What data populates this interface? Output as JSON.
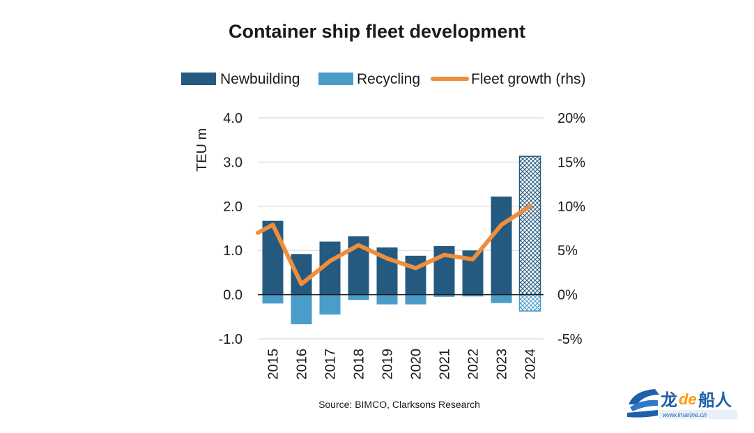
{
  "chart_data": {
    "type": "bar",
    "title": "Container ship fleet development",
    "ylabel": "TEU m",
    "ylim": [
      -1.0,
      4.0
    ],
    "y_ticks": [
      "4.0",
      "3.0",
      "2.0",
      "1.0",
      "0.0",
      "-1.0"
    ],
    "y2lim": [
      -5,
      20
    ],
    "y2_ticks": [
      "20%",
      "15%",
      "10%",
      "5%",
      "0%",
      "-5%"
    ],
    "categories": [
      "2015",
      "2016",
      "2017",
      "2018",
      "2019",
      "2020",
      "2021",
      "2022",
      "2023",
      "2024"
    ],
    "series": [
      {
        "name": "Newbuilding",
        "type": "bar",
        "values": [
          1.67,
          0.92,
          1.2,
          1.32,
          1.07,
          0.88,
          1.1,
          1.0,
          2.22,
          3.13
        ]
      },
      {
        "name": "Recycling",
        "type": "bar",
        "values": [
          -0.2,
          -0.67,
          -0.45,
          -0.12,
          -0.22,
          -0.22,
          -0.05,
          -0.04,
          -0.19,
          -0.37
        ]
      },
      {
        "name": "Fleet growth (rhs)",
        "type": "line",
        "axis": "right",
        "values": [
          7.9,
          1.2,
          3.8,
          5.6,
          4.1,
          3.0,
          4.5,
          4.0,
          7.9,
          10.0
        ]
      }
    ],
    "line_start_value": 7.0,
    "forecast_category": "2024",
    "grid": true,
    "legend_position": "top",
    "source": "Source: BIMCO, Clarksons Research"
  },
  "colors": {
    "newbuilding": "#245a7f",
    "recycling": "#4a9cc9",
    "fleet_growth": "#ef8e3c",
    "grid": "#d9d9d9"
  },
  "watermark": {
    "cn_left": "龙",
    "de": "de",
    "cn_right": "船人",
    "url": "www.imarine.cn"
  }
}
